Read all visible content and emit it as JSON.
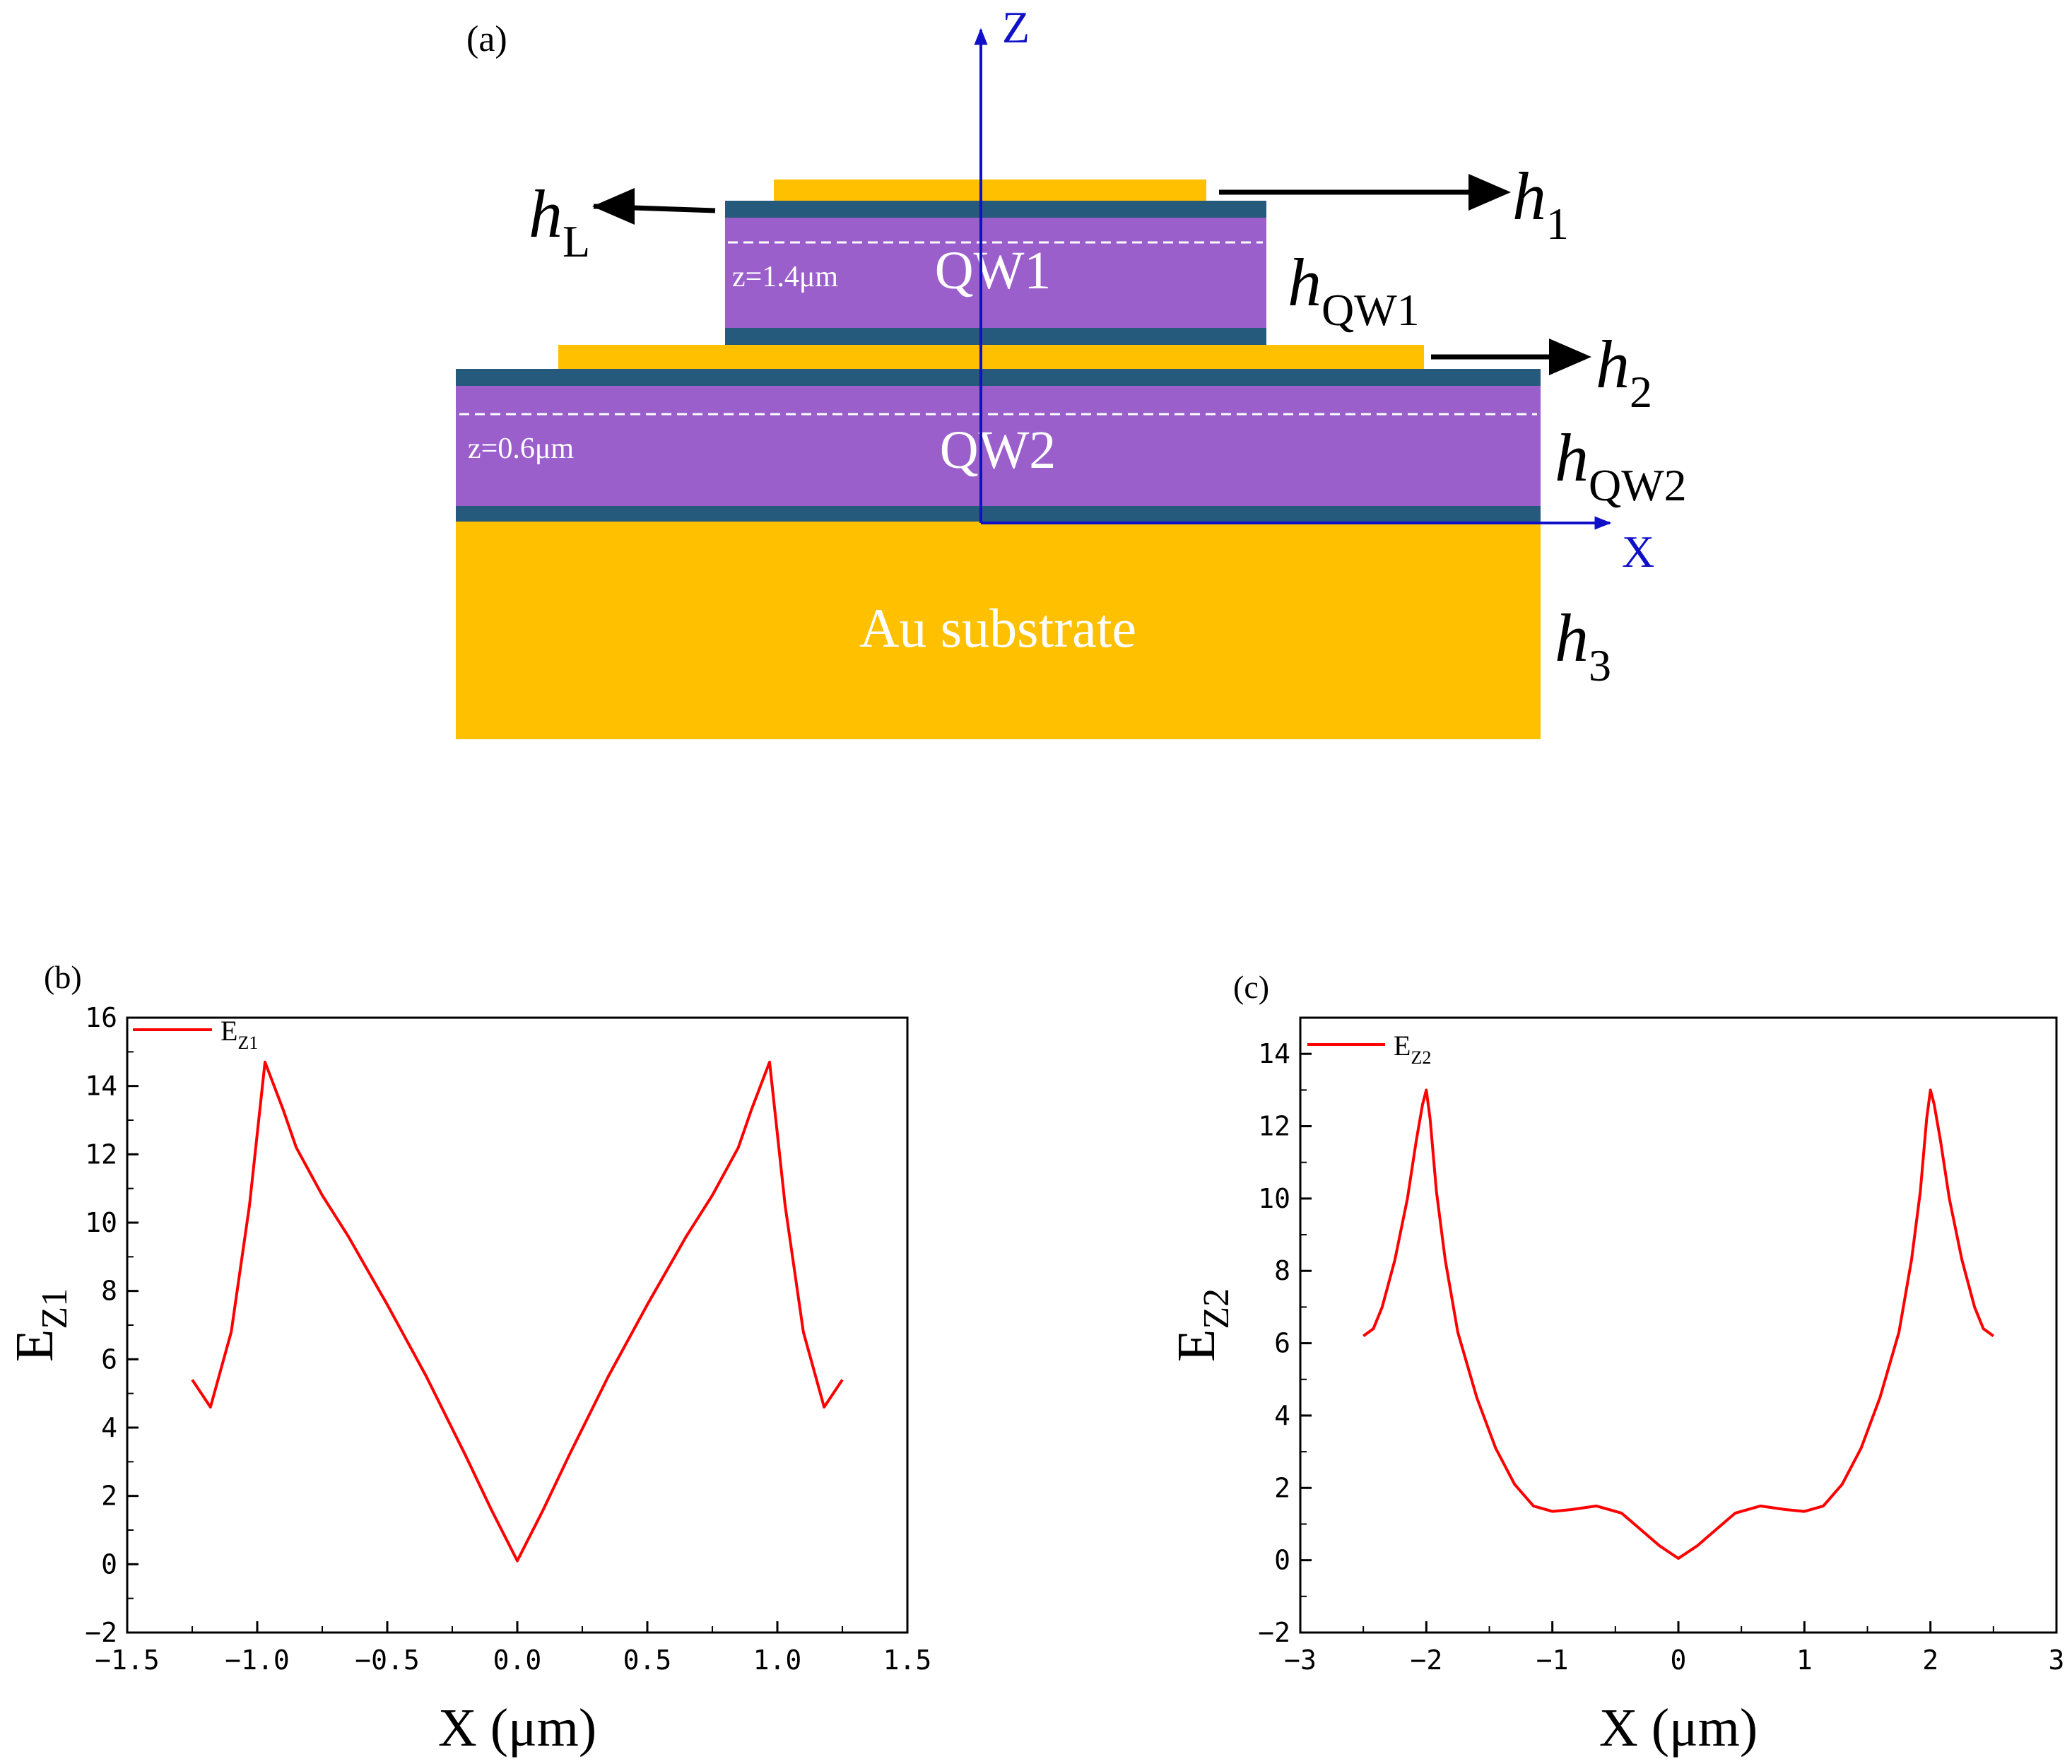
{
  "panel_a": {
    "label": "(a)",
    "axis_z": "Z",
    "axis_x": "X",
    "qw1_label": "QW1",
    "qw2_label": "QW2",
    "z1_label": "z=1.4μm",
    "z2_label": "z=0.6μm",
    "substrate_label": "Au substrate",
    "heights": {
      "h_L": {
        "base": "h",
        "sub": "L"
      },
      "h_1": {
        "base": "h",
        "sub": "1"
      },
      "h_QW1": {
        "base": "h",
        "sub": "QW1"
      },
      "h_2": {
        "base": "h",
        "sub": "2"
      },
      "h_QW2": {
        "base": "h",
        "sub": "QW2"
      },
      "h_3": {
        "base": "h",
        "sub": "3"
      }
    },
    "colors": {
      "gold": "#FFC000",
      "quantum_well": "#9B5FCC",
      "barrier": "#255A7C",
      "axis": "#1010C8",
      "arrow": "#000000"
    }
  },
  "chart_data": [
    {
      "panel_label": "(b)",
      "type": "line",
      "xlabel": "X (μm)",
      "ylabel": {
        "base": "E",
        "sub": "Z1"
      },
      "xlim": [
        -1.5,
        1.5
      ],
      "ylim": [
        -2,
        16
      ],
      "xticks": [
        -1.5,
        -1.0,
        -0.5,
        0.0,
        0.5,
        1.0,
        1.5
      ],
      "xtick_labels": [
        "−1.5",
        "−1.0",
        "−0.5",
        "0.0",
        "0.5",
        "1.0",
        "1.5"
      ],
      "yticks": [
        -2,
        0,
        2,
        4,
        6,
        8,
        10,
        12,
        14,
        16
      ],
      "ytick_labels": [
        "−2",
        "0",
        "2",
        "4",
        "6",
        "8",
        "10",
        "12",
        "14",
        "16"
      ],
      "legend": {
        "base": "E",
        "sub": "Z1",
        "position": "top-left"
      },
      "series": [
        {
          "name": "EZ1",
          "color": "#FF0000",
          "x": [
            -1.25,
            -1.18,
            -1.1,
            -1.03,
            -0.97,
            -0.9,
            -0.85,
            -0.75,
            -0.65,
            -0.5,
            -0.35,
            -0.2,
            -0.1,
            0.0,
            0.1,
            0.2,
            0.35,
            0.5,
            0.65,
            0.75,
            0.85,
            0.9,
            0.97,
            1.03,
            1.1,
            1.18,
            1.25
          ],
          "y": [
            5.4,
            4.6,
            6.8,
            10.5,
            14.7,
            13.3,
            12.2,
            10.8,
            9.6,
            7.6,
            5.5,
            3.2,
            1.6,
            0.1,
            1.6,
            3.2,
            5.5,
            7.6,
            9.6,
            10.8,
            12.2,
            13.3,
            14.7,
            10.5,
            6.8,
            4.6,
            5.4
          ]
        }
      ]
    },
    {
      "panel_label": "(c)",
      "type": "line",
      "xlabel": "X (μm)",
      "ylabel": {
        "base": "E",
        "sub": "Z2"
      },
      "xlim": [
        -3,
        3
      ],
      "ylim": [
        -2,
        15
      ],
      "xticks": [
        -3,
        -2,
        -1,
        0,
        1,
        2,
        3
      ],
      "xtick_labels": [
        "−3",
        "−2",
        "−1",
        "0",
        "1",
        "2",
        "3"
      ],
      "yticks": [
        -2,
        0,
        2,
        4,
        6,
        8,
        10,
        12,
        14
      ],
      "ytick_labels": [
        "−2",
        "0",
        "2",
        "4",
        "6",
        "8",
        "10",
        "12",
        "14"
      ],
      "legend": {
        "base": "E",
        "sub": "Z2",
        "position": "top-left"
      },
      "series": [
        {
          "name": "EZ2",
          "color": "#FF0000",
          "x": [
            -2.5,
            -2.42,
            -2.35,
            -2.25,
            -2.15,
            -2.08,
            -2.03,
            -2.0,
            -1.97,
            -1.92,
            -1.85,
            -1.75,
            -1.6,
            -1.45,
            -1.3,
            -1.15,
            -1.0,
            -0.85,
            -0.65,
            -0.45,
            -0.3,
            -0.15,
            0.0,
            0.15,
            0.3,
            0.45,
            0.65,
            0.85,
            1.0,
            1.15,
            1.3,
            1.45,
            1.6,
            1.75,
            1.85,
            1.92,
            1.97,
            2.0,
            2.03,
            2.08,
            2.15,
            2.25,
            2.35,
            2.42,
            2.5
          ],
          "y": [
            6.2,
            6.4,
            7.0,
            8.3,
            10.0,
            11.6,
            12.6,
            13.0,
            12.2,
            10.2,
            8.3,
            6.3,
            4.5,
            3.1,
            2.1,
            1.5,
            1.35,
            1.4,
            1.5,
            1.3,
            0.85,
            0.4,
            0.05,
            0.4,
            0.85,
            1.3,
            1.5,
            1.4,
            1.35,
            1.5,
            2.1,
            3.1,
            4.5,
            6.3,
            8.3,
            10.2,
            12.2,
            13.0,
            12.6,
            11.6,
            10.0,
            8.3,
            7.0,
            6.4,
            6.2
          ]
        }
      ]
    }
  ]
}
